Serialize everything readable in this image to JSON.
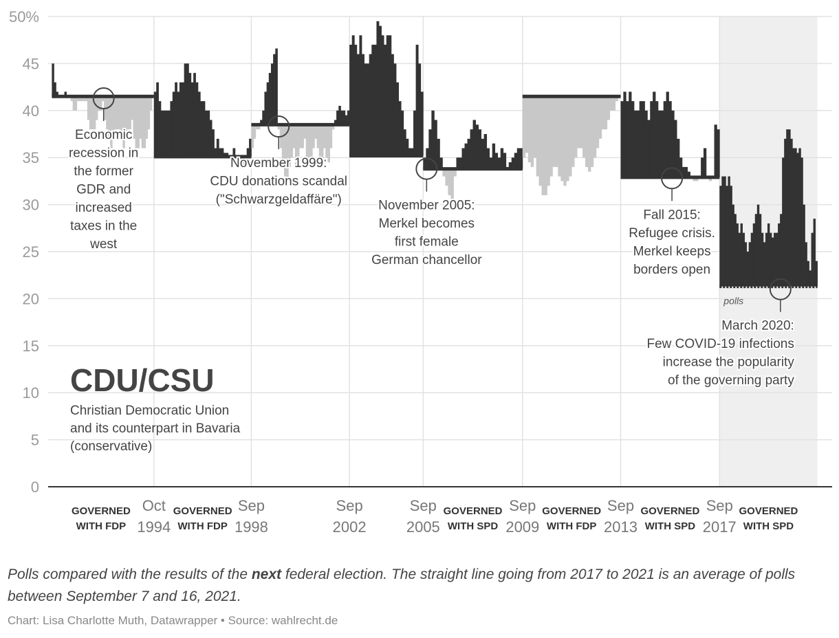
{
  "chart_data": {
    "type": "area",
    "title": "CDU/CSU",
    "subtitle": "Christian Democratic Union and its counterpart in Bavaria (conservative)",
    "ylim": [
      0,
      50
    ],
    "y_ticks": [
      0,
      5,
      10,
      15,
      20,
      25,
      30,
      35,
      40,
      45,
      50
    ],
    "y_tick_labels": [
      "0",
      "5",
      "10",
      "15",
      "20",
      "25",
      "30",
      "35",
      "40",
      "45",
      "50%"
    ],
    "grid": true,
    "x_ticks": [
      {
        "year": 1994.79,
        "label": [
          "Oct",
          "1994"
        ]
      },
      {
        "year": 1998.74,
        "label": [
          "Sep",
          "1998"
        ]
      },
      {
        "year": 2002.72,
        "label": [
          "Sep",
          "2002"
        ]
      },
      {
        "year": 2005.71,
        "label": [
          "Sep",
          "2005"
        ]
      },
      {
        "year": 2009.74,
        "label": [
          "Sep",
          "2009"
        ]
      },
      {
        "year": 2013.72,
        "label": [
          "Sep",
          "2013"
        ]
      },
      {
        "year": 2017.73,
        "label": [
          "Sep",
          "2017"
        ]
      }
    ],
    "shaded_period": [
      2017.73,
      2021.7
    ],
    "governments": [
      {
        "from": 1990.5,
        "to": 1994.79,
        "label": [
          "GOVERNED",
          "WITH FDP"
        ]
      },
      {
        "from": 1994.79,
        "to": 1998.74,
        "label": [
          "GOVERNED",
          "WITH FDP"
        ]
      },
      {
        "from": 2005.71,
        "to": 2009.74,
        "label": [
          "GOVERNED",
          "WITH SPD"
        ]
      },
      {
        "from": 2009.74,
        "to": 2013.72,
        "label": [
          "GOVERNED",
          "WITH FDP"
        ]
      },
      {
        "from": 2013.72,
        "to": 2017.73,
        "label": [
          "GOVERNED",
          "WITH SPD"
        ]
      },
      {
        "from": 2017.73,
        "to": 2021.7,
        "label": [
          "GOVERNED",
          "WITH SPD"
        ]
      }
    ],
    "periods": [
      {
        "start": 1990.65,
        "end": 1994.79,
        "result": 41.5,
        "polls": [
          45,
          43,
          42,
          41.5,
          41.5,
          41.5,
          42,
          41.5,
          41.5,
          41,
          40,
          40,
          41,
          41,
          41,
          41,
          41,
          39,
          38,
          38,
          38,
          39,
          40,
          40,
          41,
          39,
          38,
          37,
          36,
          37,
          38,
          38,
          38,
          37,
          36,
          37,
          38,
          38,
          39,
          37,
          36,
          36,
          37,
          36,
          36,
          37,
          38,
          40,
          41.5
        ]
      },
      {
        "start": 1994.79,
        "end": 1998.74,
        "result": 35.1,
        "polls": [
          42,
          43,
          41,
          40,
          40,
          40,
          40,
          41,
          42,
          43,
          42,
          43,
          43,
          45,
          45,
          44,
          43,
          44,
          43,
          42,
          41,
          41,
          40,
          40,
          39,
          38,
          36,
          37,
          36,
          36,
          35.5,
          35.5,
          35,
          35,
          36,
          35,
          35,
          34.5,
          34,
          35,
          36,
          37
        ]
      },
      {
        "start": 1998.74,
        "end": 2002.72,
        "result": 38.5,
        "polls": [
          36,
          37,
          38,
          38,
          39,
          40,
          42,
          43,
          44,
          45,
          46,
          46.6,
          38,
          36,
          34,
          33,
          32.5,
          34,
          35,
          36,
          34,
          35,
          36,
          36,
          37,
          35,
          34.5,
          35,
          36,
          37,
          36,
          35,
          34.5,
          36,
          35,
          34.5,
          36,
          38,
          39,
          40,
          40.5,
          40,
          40,
          39.5,
          40
        ]
      },
      {
        "start": 2002.72,
        "end": 2005.71,
        "result": 35.2,
        "polls": [
          47,
          48,
          47,
          46,
          48,
          46,
          45,
          45,
          46,
          47,
          47,
          49.5,
          49,
          48,
          47,
          48,
          48,
          46,
          45,
          43,
          41,
          40,
          38,
          37,
          36,
          36,
          40,
          47,
          45,
          42
        ]
      },
      {
        "start": 2005.71,
        "end": 2009.74,
        "result": 33.8,
        "polls": [
          35,
          36,
          38,
          40,
          39,
          37,
          35,
          33,
          32,
          31,
          30.5,
          33,
          35,
          35,
          36,
          36.5,
          37,
          38,
          39,
          38.5,
          38,
          37,
          37.5,
          36,
          35,
          36.5,
          35.5,
          35,
          36,
          35.5,
          34,
          34.5,
          35,
          35.5,
          36,
          36
        ]
      },
      {
        "start": 2009.74,
        "end": 2013.72,
        "result": 41.5,
        "polls": [
          35,
          35.5,
          34.5,
          34,
          35,
          33,
          32,
          31,
          31,
          32,
          33,
          34,
          34,
          33,
          32.5,
          32,
          32.5,
          33,
          34,
          35,
          36,
          36,
          35,
          34,
          33.5,
          34,
          35,
          36,
          37,
          38,
          38,
          39,
          40,
          40,
          41,
          41.5
        ]
      },
      {
        "start": 2013.72,
        "end": 2017.73,
        "result": 32.9,
        "polls": [
          41,
          42,
          41,
          42,
          41,
          40,
          40,
          41,
          41,
          40,
          39,
          41,
          42,
          41,
          40,
          40,
          41,
          42,
          41,
          40,
          39,
          37,
          35,
          34,
          34,
          33.5,
          33,
          32.5,
          32.5,
          33,
          35,
          36,
          33,
          32.5,
          33,
          38.5,
          38
        ]
      },
      {
        "start": 2017.73,
        "end": 2021.7,
        "result": 21.3,
        "polls": [
          32,
          33,
          33,
          32,
          33,
          32,
          30,
          29,
          28,
          27,
          28,
          27,
          26,
          25,
          26,
          27,
          28,
          29,
          30,
          29,
          27,
          26,
          27,
          28,
          27,
          26.5,
          27,
          27,
          28,
          29,
          35,
          37,
          38,
          38,
          37,
          36,
          36,
          35.5,
          36,
          35,
          30,
          26,
          24,
          23,
          27,
          28.5,
          24
        ]
      }
    ],
    "annotations": [
      {
        "x": 1992.75,
        "y": 41.3,
        "lines": [
          "Economic",
          "recession in",
          "the former",
          "GDR and",
          "increased",
          "taxes in the",
          "west"
        ],
        "anchor": "middle"
      },
      {
        "x": 1999.85,
        "y": 38.3,
        "lines": [
          "November 1999:",
          "CDU donations scandal",
          "(\"Schwarzgeldaffäre\")"
        ],
        "anchor": "middle"
      },
      {
        "x": 2005.85,
        "y": 33.8,
        "lines": [
          "November 2005:",
          "Merkel becomes",
          "first female",
          "German chancellor"
        ],
        "anchor": "middle"
      },
      {
        "x": 2015.8,
        "y": 32.8,
        "lines": [
          "Fall 2015:",
          "Refugee crisis.",
          "Merkel keeps",
          "borders open"
        ],
        "anchor": "middle"
      },
      {
        "x": 2020.2,
        "y": 21.0,
        "lines": [
          "March 2020:",
          "Few COVID-19 infections",
          "increase the popularity",
          "of the governing party"
        ],
        "anchor": "end"
      }
    ],
    "polls_label": "polls",
    "colors": {
      "above_result": "#333333",
      "below_result": "#c8c8c8",
      "result_line": "#333333",
      "grid": "#e2e2e2",
      "shade": "#efefef"
    }
  },
  "footer": {
    "note_before": "Polls compared with the results of the ",
    "note_bold": "next",
    "note_after": " federal election. The straight line going from 2017 to 2021 is an average of polls between September 7 and 16, 2021.",
    "credit": "Chart: Lisa Charlotte Muth, Datawrapper • Source: wahlrecht.de"
  }
}
